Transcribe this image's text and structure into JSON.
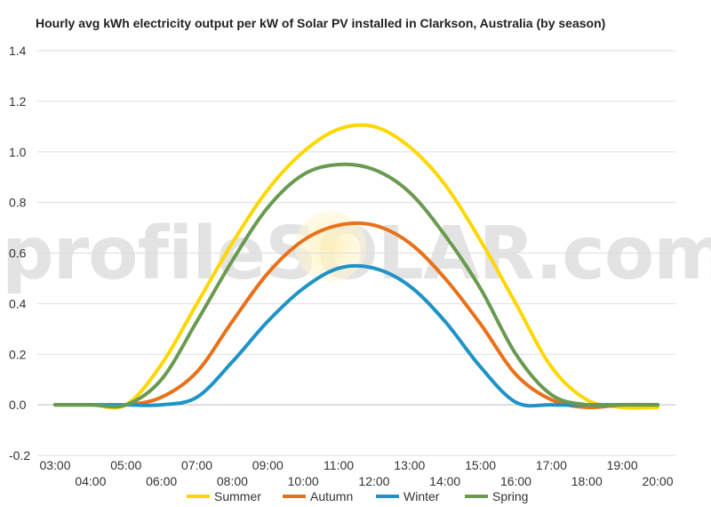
{
  "chart_data": {
    "type": "line",
    "title": "Hourly avg kWh electricity output per kW of Solar PV installed in Clarkson, Australia (by season)",
    "watermark": "profileSOLAR.com",
    "xlabel": "",
    "ylabel": "",
    "x": [
      "03:00",
      "04:00",
      "05:00",
      "06:00",
      "07:00",
      "08:00",
      "09:00",
      "10:00",
      "11:00",
      "12:00",
      "13:00",
      "14:00",
      "15:00",
      "16:00",
      "17:00",
      "18:00",
      "19:00",
      "20:00"
    ],
    "ylim": [
      -0.2,
      1.4
    ],
    "yticks": [
      -0.2,
      0.0,
      0.2,
      0.4,
      0.6,
      0.8,
      1.0,
      1.2,
      1.4
    ],
    "grid": true,
    "legend_position": "bottom",
    "series": [
      {
        "name": "Summer",
        "color": "#FFD700",
        "values": [
          0,
          0,
          0,
          0.16,
          0.4,
          0.64,
          0.85,
          1.0,
          1.09,
          1.1,
          1.02,
          0.87,
          0.65,
          0.4,
          0.15,
          0.02,
          -0.01,
          -0.01
        ]
      },
      {
        "name": "Autumn",
        "color": "#E8711A",
        "values": [
          0,
          0,
          0,
          0.03,
          0.13,
          0.33,
          0.52,
          0.65,
          0.71,
          0.71,
          0.64,
          0.5,
          0.32,
          0.12,
          0.02,
          -0.01,
          0,
          0
        ]
      },
      {
        "name": "Winter",
        "color": "#1F93C6",
        "values": [
          0,
          0,
          0,
          0,
          0.03,
          0.17,
          0.33,
          0.46,
          0.54,
          0.54,
          0.47,
          0.33,
          0.15,
          0.01,
          0,
          0,
          0,
          0
        ]
      },
      {
        "name": "Spring",
        "color": "#6A9A50",
        "values": [
          0,
          0,
          0,
          0.1,
          0.33,
          0.57,
          0.78,
          0.91,
          0.95,
          0.93,
          0.84,
          0.67,
          0.46,
          0.2,
          0.04,
          0,
          0,
          0
        ]
      }
    ]
  }
}
